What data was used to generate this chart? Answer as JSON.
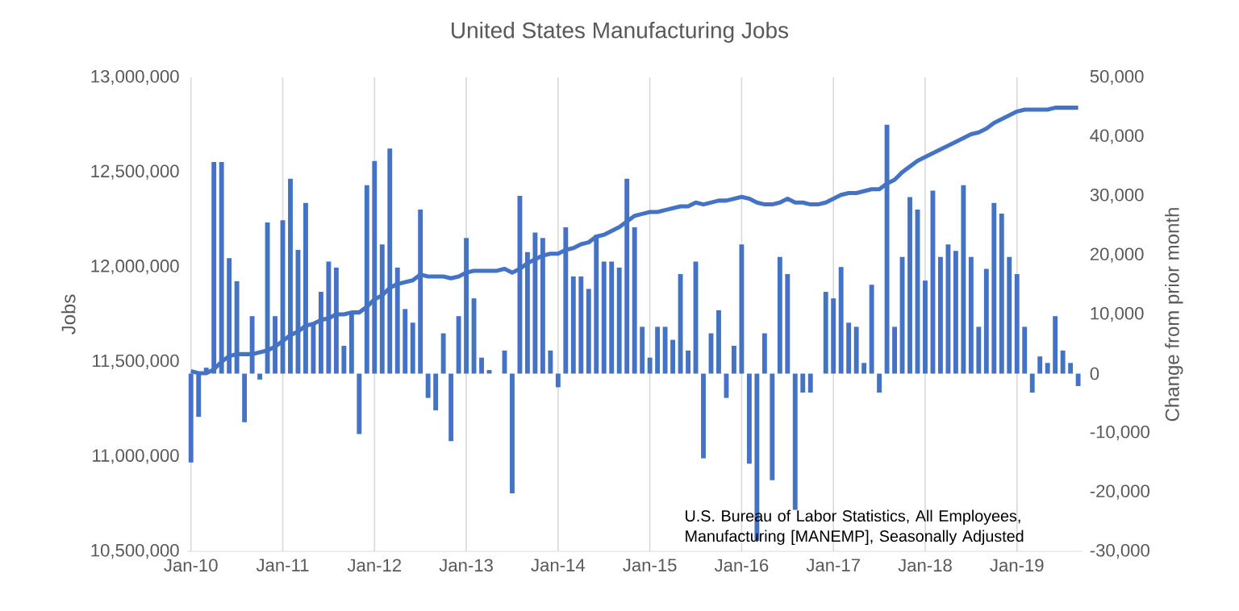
{
  "chart_data": {
    "type": "bar",
    "title": "United States Manufacturing Jobs",
    "ylabel": "Jobs",
    "y2label": "Change from prior month",
    "categories": [
      "Jan-10",
      null,
      null,
      null,
      null,
      null,
      null,
      null,
      null,
      null,
      null,
      null,
      "Jan-11",
      null,
      null,
      null,
      null,
      null,
      null,
      null,
      null,
      null,
      null,
      null,
      "Jan-12",
      null,
      null,
      null,
      null,
      null,
      null,
      null,
      null,
      null,
      null,
      null,
      "Jan-13",
      null,
      null,
      null,
      null,
      null,
      null,
      null,
      null,
      null,
      null,
      null,
      "Jan-14",
      null,
      null,
      null,
      null,
      null,
      null,
      null,
      null,
      null,
      null,
      null,
      "Jan-15",
      null,
      null,
      null,
      null,
      null,
      null,
      null,
      null,
      null,
      null,
      null,
      "Jan-16",
      null,
      null,
      null,
      null,
      null,
      null,
      null,
      null,
      null,
      null,
      null,
      "Jan-17",
      null,
      null,
      null,
      null,
      null,
      null,
      null,
      null,
      null,
      null,
      null,
      "Jan-18",
      null,
      null,
      null,
      null,
      null,
      null,
      null,
      null,
      null,
      null,
      null,
      "Jan-19",
      null,
      null,
      null,
      null,
      null,
      null,
      null,
      null
    ],
    "series": [
      {
        "axis": "y2",
        "color": "#4472c4",
        "values": [
          -15000,
          -7300,
          1000,
          35700,
          35700,
          19500,
          15600,
          -8200,
          9700,
          -1000,
          25500,
          9700,
          25900,
          32900,
          20900,
          28800,
          8600,
          13800,
          18900,
          17900,
          4700,
          10500,
          -10200,
          31800,
          35900,
          21800,
          38000,
          17900,
          10900,
          8600,
          27700,
          -4100,
          -6200,
          6800,
          -11400,
          9700,
          22900,
          12700,
          2700,
          600,
          null,
          3900,
          -20200,
          30000,
          20500,
          23800,
          22900,
          3900,
          -2300,
          24700,
          16400,
          16400,
          14300,
          23400,
          18900,
          18900,
          17900,
          32900,
          24700,
          7900,
          2700,
          7900,
          7900,
          5700,
          16800,
          3900,
          18900,
          -14300,
          6800,
          10700,
          -4100,
          4700,
          21800,
          -15200,
          -28200,
          6800,
          -18000,
          19700,
          16800,
          -23000,
          -3200,
          -3200,
          null,
          13800,
          12700,
          18000,
          8600,
          7900,
          1800,
          15000,
          -3200,
          42000,
          7900,
          19700,
          29800,
          27700,
          15700,
          30900,
          19700,
          21800,
          20700,
          31800,
          19700,
          7900,
          17700,
          28800,
          27000,
          19700,
          16800,
          7900,
          -3200,
          2900,
          1800,
          9700,
          3900,
          1800,
          -2100
        ]
      },
      {
        "type": "line",
        "axis": "y",
        "color": "#4472c4",
        "values": [
          11450000,
          11440000,
          11440000,
          11460000,
          11500000,
          11530000,
          11540000,
          11540000,
          11540000,
          11550000,
          11560000,
          11580000,
          11610000,
          11640000,
          11660000,
          11690000,
          11700000,
          11720000,
          11730000,
          11750000,
          11750000,
          11760000,
          11760000,
          11790000,
          11830000,
          11850000,
          11890000,
          11910000,
          11920000,
          11930000,
          11960000,
          11950000,
          11950000,
          11950000,
          11940000,
          11950000,
          11970000,
          11980000,
          11980000,
          11980000,
          11980000,
          11990000,
          11970000,
          11990000,
          12020000,
          12040000,
          12060000,
          12070000,
          12070000,
          12090000,
          12100000,
          12120000,
          12130000,
          12160000,
          12170000,
          12190000,
          12210000,
          12240000,
          12270000,
          12280000,
          12290000,
          12290000,
          12300000,
          12310000,
          12320000,
          12320000,
          12340000,
          12330000,
          12340000,
          12350000,
          12350000,
          12360000,
          12370000,
          12360000,
          12340000,
          12330000,
          12330000,
          12340000,
          12360000,
          12340000,
          12340000,
          12330000,
          12330000,
          12340000,
          12360000,
          12380000,
          12390000,
          12390000,
          12400000,
          12410000,
          12410000,
          12440000,
          12460000,
          12500000,
          12530000,
          12560000,
          12580000,
          12600000,
          12620000,
          12640000,
          12660000,
          12680000,
          12700000,
          12710000,
          12730000,
          12760000,
          12780000,
          12800000,
          12820000,
          12830000,
          12830000,
          12830000,
          12830000,
          12840000,
          12840000,
          12840000,
          12840000
        ]
      }
    ],
    "ylim": [
      10500000,
      13000000
    ],
    "yticks": [
      {
        "value": 10500000,
        "label": "10,500,000"
      },
      {
        "value": 11000000,
        "label": "11,000,000"
      },
      {
        "value": 11500000,
        "label": "11,500,000"
      },
      {
        "value": 12000000,
        "label": "12,000,000"
      },
      {
        "value": 12500000,
        "label": "12,500,000"
      },
      {
        "value": 13000000,
        "label": "13,000,000"
      }
    ],
    "y2lim": [
      -30000,
      50000
    ],
    "y2ticks": [
      {
        "value": -30000,
        "label": "-30,000"
      },
      {
        "value": -20000,
        "label": "-20,000"
      },
      {
        "value": -10000,
        "label": "-10,000"
      },
      0,
      {
        "value": 10000,
        "label": "10,000"
      },
      {
        "value": 20000,
        "label": "20,000"
      },
      {
        "value": 30000,
        "label": "30,000"
      },
      {
        "value": 40000,
        "label": "40,000"
      },
      {
        "value": 50000,
        "label": "50,000"
      }
    ],
    "grid": "x",
    "annotations": [
      "U.S. Bureau of Labor Statistics, All Employees, Manufacturing [MANEMP],  Seasonally Adjusted"
    ]
  }
}
